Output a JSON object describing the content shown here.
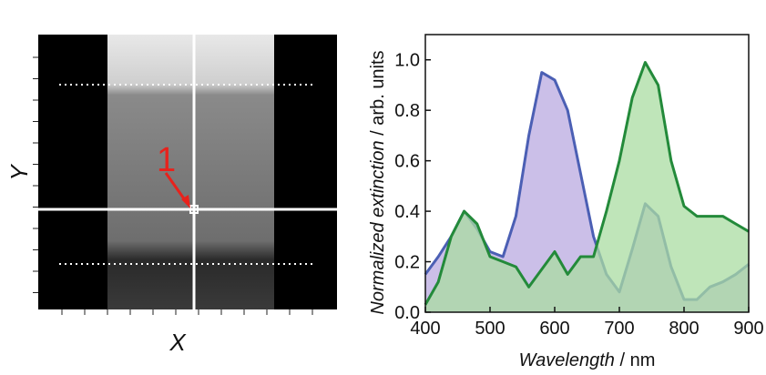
{
  "image_panel": {
    "x_label": "X",
    "y_label": "Y",
    "marker": "1"
  },
  "chart_data": {
    "type": "line",
    "area": true,
    "xlabel": [
      "Wavelength",
      " / nm"
    ],
    "ylabel": [
      "Normalized extinction",
      " / arb. units"
    ],
    "x": [
      400,
      420,
      440,
      460,
      480,
      500,
      520,
      540,
      560,
      580,
      600,
      620,
      640,
      660,
      680,
      700,
      720,
      740,
      760,
      780,
      800,
      820,
      840,
      860,
      880,
      900
    ],
    "series": [
      {
        "color": "#4b5fb4",
        "fill": "#b9a9e0",
        "values": [
          0.15,
          0.22,
          0.3,
          0.4,
          0.33,
          0.24,
          0.22,
          0.38,
          0.7,
          0.95,
          0.92,
          0.8,
          0.55,
          0.3,
          0.15,
          0.08,
          0.25,
          0.43,
          0.38,
          0.18,
          0.05,
          0.05,
          0.1,
          0.12,
          0.15,
          0.19
        ]
      },
      {
        "color": "#238a3a",
        "fill": "#a9dca2",
        "values": [
          0.03,
          0.12,
          0.3,
          0.4,
          0.35,
          0.22,
          0.2,
          0.18,
          0.1,
          0.17,
          0.24,
          0.15,
          0.22,
          0.22,
          0.4,
          0.6,
          0.85,
          0.99,
          0.9,
          0.6,
          0.42,
          0.38,
          0.38,
          0.38,
          0.35,
          0.32
        ]
      }
    ],
    "xlim": [
      400,
      900
    ],
    "xticks": [
      400,
      500,
      600,
      700,
      800,
      900
    ],
    "ylim": [
      0,
      1.1
    ],
    "yticks": [
      {
        "value": 0,
        "label": "0.0"
      },
      {
        "value": 0.2,
        "label": "0.2"
      },
      {
        "value": 0.4,
        "label": "0.4"
      },
      {
        "value": 0.6,
        "label": "0.6"
      },
      {
        "value": 0.8,
        "label": "0.8"
      },
      {
        "value": 1,
        "label": "1.0"
      }
    ]
  }
}
